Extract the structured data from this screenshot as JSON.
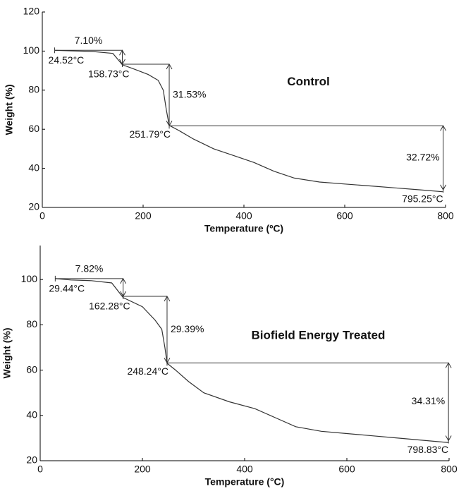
{
  "chart_data": [
    {
      "type": "line",
      "title": "Control",
      "xlabel": "Temperature (ºC)",
      "ylabel": "Weight (%)",
      "color": "#333333",
      "x": [
        24.52,
        60,
        100,
        140,
        158.73,
        180,
        210,
        230,
        240,
        246,
        251.79,
        270,
        300,
        340,
        380,
        420,
        460,
        500,
        550,
        600,
        650,
        700,
        750,
        795.25
      ],
      "values": [
        100.4,
        100.1,
        99.8,
        98.8,
        93,
        91,
        88,
        85,
        80,
        70,
        62,
        59.5,
        55,
        50,
        46.5,
        43,
        38.5,
        35,
        33,
        32,
        31,
        30,
        29,
        28
      ],
      "xlim": [
        0,
        800
      ],
      "xticks": [
        0,
        200,
        400,
        600,
        800
      ],
      "ylim": [
        20,
        120
      ],
      "yticks": [
        20,
        40,
        60,
        80,
        100,
        120
      ],
      "events": [
        {
          "temperature": 24.52,
          "label": "24.52°C"
        },
        {
          "temperature": 158.73,
          "label": "158.73°C"
        },
        {
          "temperature": 251.79,
          "label": "251.79°C"
        },
        {
          "temperature": 795.25,
          "label": "795.25°C"
        }
      ],
      "losses": [
        {
          "value": 7.1,
          "label": "7.10%"
        },
        {
          "value": 31.53,
          "label": "31.53%"
        },
        {
          "value": 32.72,
          "label": "32.72%"
        }
      ]
    },
    {
      "type": "line",
      "title": "Biofield Energy Treated",
      "xlabel": "Temperature (°C)",
      "ylabel": "Weight (%)",
      "color": "#333333",
      "x": [
        29.44,
        60,
        100,
        140,
        162.28,
        200,
        225,
        238,
        244,
        248.24,
        265,
        290,
        320,
        370,
        420,
        460,
        500,
        550,
        600,
        650,
        700,
        750,
        798.83
      ],
      "values": [
        100.4,
        99.8,
        99.5,
        98.5,
        92,
        88,
        82,
        78,
        70,
        63,
        60,
        55,
        50,
        46,
        43,
        39,
        35,
        33,
        32,
        31,
        30,
        29,
        28
      ],
      "xlim": [
        0,
        800
      ],
      "xticks": [
        0,
        200,
        400,
        600,
        800
      ],
      "ylim": [
        20,
        115
      ],
      "yticks": [
        20,
        40,
        60,
        80,
        100
      ],
      "events": [
        {
          "temperature": 29.44,
          "label": "29.44°C"
        },
        {
          "temperature": 162.28,
          "label": "162.28°C"
        },
        {
          "temperature": 248.24,
          "label": "248.24°C"
        },
        {
          "temperature": 798.83,
          "label": "798.83°C"
        }
      ],
      "losses": [
        {
          "value": 7.82,
          "label": "7.82%"
        },
        {
          "value": 29.39,
          "label": "29.39%"
        },
        {
          "value": 34.31,
          "label": "34.31%"
        }
      ]
    }
  ]
}
